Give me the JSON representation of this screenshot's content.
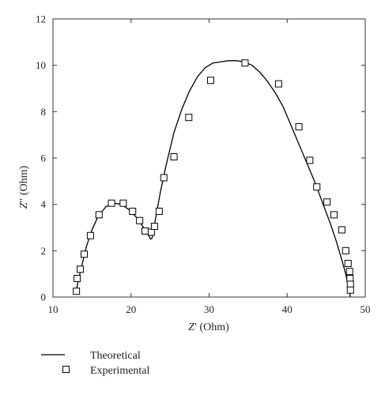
{
  "chart_data": {
    "type": "scatter",
    "xlabel": "Z′ (Ohm)",
    "ylabel": "Z″ (Ohm)",
    "xlabel_main": "Z",
    "xlabel_mark": "′",
    "xlabel_unit": " (Ohm)",
    "ylabel_main": "Z",
    "ylabel_mark": "″",
    "ylabel_unit": " (Ohm)",
    "xlim": [
      10,
      50
    ],
    "ylim": [
      0,
      12
    ],
    "xticks": [
      10,
      20,
      30,
      40,
      50
    ],
    "yticks": [
      0,
      2,
      4,
      6,
      8,
      10,
      12
    ],
    "grid": false,
    "legend_position": "bottom-left",
    "colors": {
      "line": "#000000",
      "marker": "#000000",
      "axis": "#333333"
    },
    "series": [
      {
        "name": "Theoretical",
        "kind": "line",
        "x": [
          13.0,
          13.3,
          13.8,
          14.3,
          15.0,
          15.8,
          16.8,
          17.8,
          18.8,
          19.8,
          20.8,
          21.6,
          22.1,
          22.5,
          22.7,
          22.9,
          23.2,
          23.8,
          24.5,
          25.5,
          26.5,
          27.5,
          28.5,
          29.5,
          30.5,
          31.5,
          32.5,
          33.5,
          34.5,
          35.5,
          36.5,
          37.5,
          38.5,
          39.5,
          40.5,
          41.5,
          42.5,
          43.5,
          44.5,
          45.5,
          46.3,
          47.0,
          47.5,
          47.8,
          48.0,
          48.1
        ],
        "y": [
          0.3,
          0.8,
          1.5,
          2.2,
          2.9,
          3.5,
          3.9,
          4.05,
          4.0,
          3.75,
          3.4,
          3.0,
          2.75,
          2.5,
          2.55,
          2.9,
          3.5,
          4.6,
          5.7,
          7.1,
          8.1,
          8.9,
          9.5,
          9.9,
          10.1,
          10.15,
          10.2,
          10.2,
          10.15,
          10.0,
          9.7,
          9.3,
          8.8,
          8.2,
          7.4,
          6.6,
          5.8,
          5.0,
          4.1,
          3.2,
          2.4,
          1.6,
          1.0,
          0.55,
          0.2,
          0.0
        ]
      },
      {
        "name": "Experimental",
        "kind": "scatter",
        "x": [
          13.0,
          13.1,
          13.5,
          14.0,
          14.8,
          15.9,
          17.5,
          19.0,
          20.2,
          21.1,
          21.8,
          22.6,
          23.0,
          23.6,
          24.2,
          25.5,
          27.4,
          30.2,
          34.6,
          38.9,
          41.5,
          42.9,
          43.8,
          45.1,
          46.0,
          47.0,
          47.5,
          47.8,
          48.0,
          48.05,
          48.1,
          48.1
        ],
        "y": [
          0.25,
          0.8,
          1.2,
          1.85,
          2.65,
          3.55,
          4.05,
          4.05,
          3.7,
          3.3,
          2.85,
          2.8,
          3.05,
          3.7,
          5.15,
          6.05,
          7.75,
          9.35,
          10.1,
          9.2,
          7.35,
          5.9,
          4.75,
          4.1,
          3.55,
          2.9,
          2.0,
          1.45,
          1.1,
          0.8,
          0.55,
          0.3
        ]
      }
    ]
  }
}
